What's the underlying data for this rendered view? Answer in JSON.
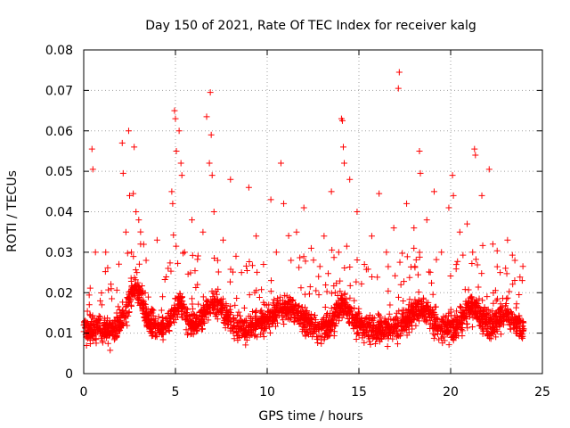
{
  "chart_data": {
    "type": "scatter",
    "title": "Day 150 of 2021, Rate Of TEC Index for receiver kalg",
    "xlabel": "GPS time / hours",
    "ylabel": "ROTI / TECUs",
    "xlim": [
      0,
      25
    ],
    "ylim": [
      0,
      0.08
    ],
    "x_ticks": [
      "0",
      "5",
      "10",
      "15",
      "20",
      "25"
    ],
    "y_ticks": [
      "0",
      "0.01",
      "0.02",
      "0.03",
      "0.04",
      "0.05",
      "0.06",
      "0.07",
      "0.08"
    ],
    "grid": true,
    "marker": "+",
    "color": "#ff0000",
    "series": [
      {
        "name": "ROTI",
        "x": [
          0.15,
          0.45,
          0.5,
          0.9,
          1.2,
          1.5,
          1.8,
          2.1,
          2.15,
          2.3,
          2.45,
          2.5,
          2.6,
          2.7,
          2.75,
          2.85,
          2.9,
          3.0,
          3.1,
          3.2,
          3.4,
          3.7,
          4.0,
          4.3,
          4.6,
          4.8,
          4.85,
          4.95,
          5.0,
          5.05,
          5.2,
          5.3,
          5.35,
          5.5,
          5.9,
          6.2,
          6.5,
          6.7,
          6.85,
          6.9,
          6.95,
          7.0,
          7.1,
          7.3,
          7.6,
          8.0,
          8.3,
          8.6,
          9.0,
          9.4,
          9.8,
          10.2,
          10.5,
          10.75,
          10.9,
          11.3,
          11.6,
          12.0,
          12.4,
          12.8,
          13.1,
          13.5,
          13.9,
          14.05,
          14.1,
          14.15,
          14.2,
          14.5,
          14.9,
          15.3,
          15.7,
          16.1,
          16.5,
          16.9,
          17.15,
          17.2,
          17.6,
          18.0,
          18.3,
          18.35,
          18.7,
          19.1,
          19.5,
          19.9,
          20.1,
          20.15,
          20.5,
          20.9,
          21.2,
          21.3,
          21.35,
          21.7,
          22.1,
          22.3,
          22.7,
          23.1,
          23.5,
          23.9
        ],
        "y": [
          0.012,
          0.0555,
          0.0505,
          0.018,
          0.03,
          0.021,
          0.015,
          0.057,
          0.0495,
          0.035,
          0.06,
          0.044,
          0.03,
          0.0445,
          0.056,
          0.04,
          0.025,
          0.038,
          0.032,
          0.02,
          0.028,
          0.016,
          0.033,
          0.019,
          0.026,
          0.045,
          0.042,
          0.065,
          0.063,
          0.055,
          0.06,
          0.052,
          0.049,
          0.03,
          0.038,
          0.022,
          0.035,
          0.0635,
          0.052,
          0.0695,
          0.059,
          0.049,
          0.04,
          0.028,
          0.033,
          0.048,
          0.029,
          0.025,
          0.046,
          0.034,
          0.027,
          0.043,
          0.03,
          0.052,
          0.042,
          0.028,
          0.035,
          0.041,
          0.031,
          0.024,
          0.034,
          0.045,
          0.03,
          0.063,
          0.0625,
          0.056,
          0.052,
          0.048,
          0.04,
          0.027,
          0.034,
          0.0445,
          0.03,
          0.036,
          0.0705,
          0.0745,
          0.042,
          0.036,
          0.055,
          0.0495,
          0.038,
          0.045,
          0.03,
          0.041,
          0.049,
          0.044,
          0.035,
          0.037,
          0.03,
          0.0555,
          0.054,
          0.044,
          0.0505,
          0.032,
          0.025,
          0.033,
          0.028,
          0.023
        ]
      }
    ]
  }
}
